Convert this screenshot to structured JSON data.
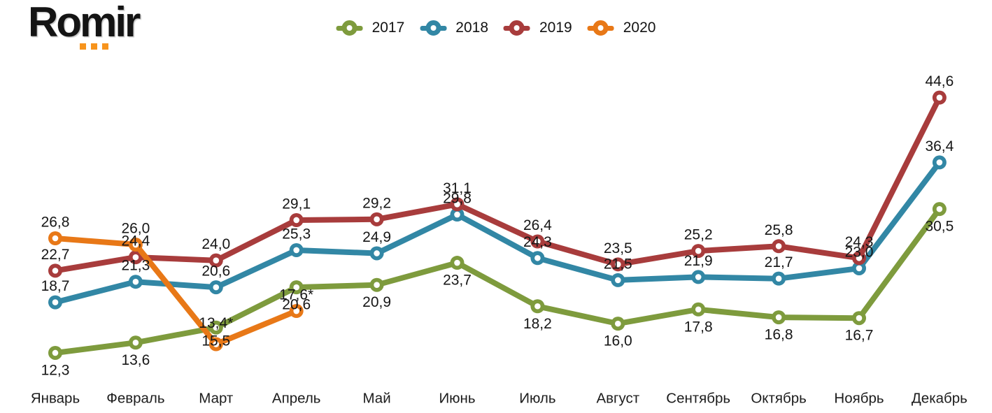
{
  "logo": {
    "text": "Romir",
    "dots_color": "#F7941D"
  },
  "chart_data": {
    "type": "line",
    "title": "",
    "categories": [
      "Январь",
      "Февраль",
      "Март",
      "Апрель",
      "Май",
      "Июнь",
      "Июль",
      "Август",
      "Сентябрь",
      "Октябрь",
      "Ноябрь",
      "Декабрь"
    ],
    "legend_position": "top-center",
    "grid": false,
    "axes_visible": false,
    "ylim": [
      9,
      48.5
    ],
    "series": [
      {
        "name": "2017",
        "color": "#7E9B3D",
        "label_position": "below",
        "values": [
          12.3,
          13.6,
          15.5,
          20.6,
          20.9,
          23.7,
          18.2,
          16.0,
          17.8,
          16.8,
          16.7,
          30.5
        ],
        "labels": [
          "12,3",
          "13,6",
          "15,5",
          "20,6",
          "20,9",
          "23,7",
          "18,2",
          "16,0",
          "17,8",
          "16,8",
          "16,7",
          "30,5"
        ]
      },
      {
        "name": "2018",
        "color": "#3287A5",
        "label_position": "above",
        "values": [
          18.7,
          21.3,
          20.6,
          25.3,
          24.9,
          29.8,
          24.3,
          21.5,
          21.9,
          21.7,
          23.0,
          36.4
        ],
        "labels": [
          "18,7",
          "21,3",
          "20,6",
          "25,3",
          "24,9",
          "29,8",
          "24,3",
          "21,5",
          "21,9",
          "21,7",
          "23,0",
          "36,4"
        ]
      },
      {
        "name": "2019",
        "color": "#A83C3C",
        "label_position": "above",
        "values": [
          22.7,
          24.4,
          24.0,
          29.1,
          29.2,
          31.1,
          26.4,
          23.5,
          25.2,
          25.8,
          24.3,
          44.6
        ],
        "labels": [
          "22,7",
          "24,4",
          "24,0",
          "29,1",
          "29,2",
          "31,1",
          "26,4",
          "23,5",
          "25,2",
          "25,8",
          "24,3",
          "44,6"
        ]
      },
      {
        "name": "2020",
        "color": "#E87817",
        "label_position": "above",
        "values": [
          26.8,
          26.0,
          13.4,
          17.6,
          null,
          null,
          null,
          null,
          null,
          null,
          null,
          null
        ],
        "labels": [
          "26,8",
          "26,0",
          "13,4*",
          "17,6*",
          "",
          "",
          "",
          "",
          "",
          "",
          "",
          ""
        ]
      }
    ]
  }
}
